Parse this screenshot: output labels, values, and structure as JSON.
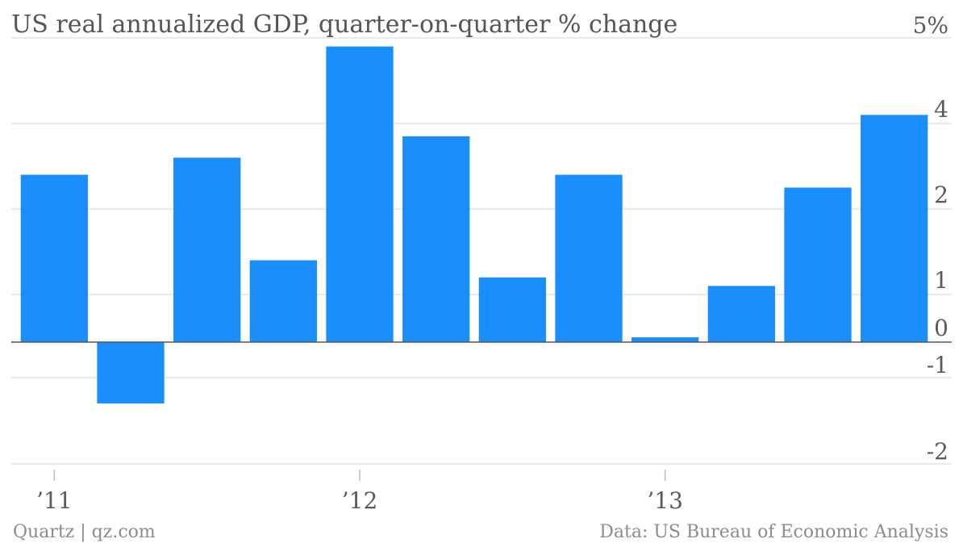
{
  "chart_data": {
    "type": "bar",
    "title": "US real annualized GDP, quarter-on-quarter % change",
    "xlabel": "",
    "ylabel": "",
    "categories": [
      "Q1 2011",
      "Q2 2011",
      "Q3 2011",
      "Q4 2011",
      "Q1 2012",
      "Q2 2012",
      "Q3 2012",
      "Q4 2012",
      "Q1 2013",
      "Q2 2013",
      "Q3 2013",
      "Q4 2013"
    ],
    "values": [
      2.8,
      -1.3,
      3.2,
      1.4,
      4.9,
      3.7,
      1.2,
      2.8,
      0.1,
      1.1,
      2.5,
      4.1
    ],
    "ylim": [
      -2,
      5
    ],
    "y_ticks": [
      {
        "value": 5,
        "label": "5%"
      },
      {
        "value": 4,
        "label": "4"
      },
      {
        "value": 2,
        "label": "2"
      },
      {
        "value": 1,
        "label": "1"
      },
      {
        "value": 0,
        "label": "0"
      },
      {
        "value": -1,
        "label": "-1"
      },
      {
        "value": -2,
        "label": "-2"
      }
    ],
    "x_ticks": [
      {
        "index": 0,
        "label": "’11"
      },
      {
        "index": 4,
        "label": "’12"
      },
      {
        "index": 8,
        "label": "’13"
      }
    ],
    "grid": true,
    "bar_color": "#1a8ffc"
  },
  "footer": {
    "source_left": "Quartz | qz.com",
    "source_right": "Data: US Bureau of Economic Analysis"
  }
}
